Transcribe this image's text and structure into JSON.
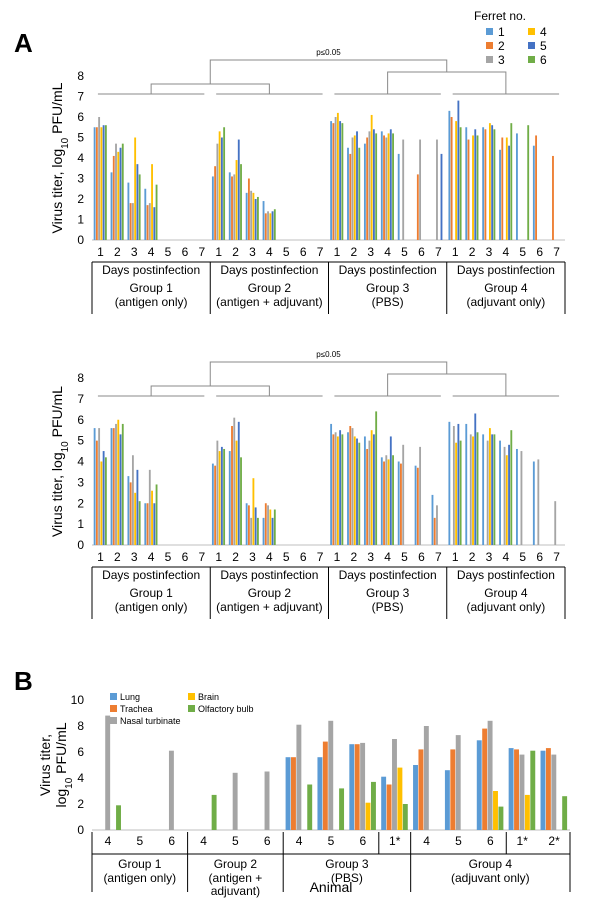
{
  "panel_a_label": "A",
  "panel_b_label": "B",
  "colors": {
    "1": "#5b9bd5",
    "2": "#ed7d31",
    "3": "#a5a5a5",
    "4": "#ffc000",
    "5": "#4472c4",
    "6": "#70ad47",
    "lung": "#5b9bd5",
    "trachea": "#ed7d31",
    "nasal": "#a5a5a5",
    "brain": "#ffc000",
    "olfactory": "#70ad47"
  },
  "chart_data": [
    {
      "type": "bar",
      "ylabel": "Virus titer, log10 PFU/mL",
      "ylim": [
        0,
        8
      ],
      "yticks": [
        0,
        1,
        2,
        3,
        4,
        5,
        6,
        7,
        8
      ],
      "legend_title": "Ferret no.",
      "legend_placement": "top-right",
      "significance": "p≤0.05",
      "days": [
        "1",
        "2",
        "3",
        "4",
        "5",
        "6",
        "7"
      ],
      "days_label": "Days postinfection",
      "groups": [
        {
          "name": "Group 1",
          "sub": "(antigen only)"
        },
        {
          "name": "Group 2",
          "sub": "(antigen + adjuvant)"
        },
        {
          "name": "Group 3",
          "sub": "(PBS)"
        },
        {
          "name": "Group 4",
          "sub": "(adjuvant only)"
        }
      ],
      "series": [
        {
          "name": "1",
          "values": [
            [
              5.5,
              3.3,
              2.8,
              2.5,
              0,
              0,
              0
            ],
            [
              3.1,
              3.3,
              2.3,
              1.9,
              0,
              0,
              0
            ],
            [
              5.8,
              4.5,
              4.7,
              5.3,
              4.2,
              0,
              0
            ],
            [
              6.3,
              5.5,
              5.5,
              4.4,
              5.2,
              4.6,
              0
            ]
          ]
        },
        {
          "name": "2",
          "values": [
            [
              5.5,
              4.1,
              1.8,
              1.7,
              0,
              0,
              0
            ],
            [
              3.6,
              3.1,
              3.0,
              1.3,
              0,
              0,
              0
            ],
            [
              5.7,
              4.2,
              5.0,
              5.1,
              0,
              3.2,
              0
            ],
            [
              6.0,
              4.9,
              5.4,
              5.0,
              0,
              5.1,
              4.1
            ]
          ]
        },
        {
          "name": "3",
          "values": [
            [
              6.0,
              4.7,
              1.8,
              1.8,
              0,
              0,
              0
            ],
            [
              4.7,
              3.2,
              2.4,
              1.4,
              0,
              0,
              0
            ],
            [
              6.0,
              5.0,
              5.3,
              5.0,
              4.9,
              4.9,
              4.9
            ]
          ]
        },
        {
          "name": "4",
          "values": [
            [
              5.5,
              4.3,
              5.0,
              3.7,
              0,
              0,
              0
            ],
            [
              5.3,
              3.9,
              2.3,
              1.3,
              0,
              0,
              0
            ],
            [
              6.2,
              5.1,
              6.1,
              5.2,
              0,
              0,
              0
            ],
            [
              5.8,
              5.1,
              5.7,
              5.0,
              0,
              0,
              0
            ]
          ]
        },
        {
          "name": "5",
          "values": [
            [
              5.6,
              4.5,
              3.7,
              1.6,
              0,
              0,
              0
            ],
            [
              5.0,
              4.9,
              2.0,
              1.4,
              0,
              0,
              0
            ],
            [
              5.8,
              5.3,
              5.4,
              5.4,
              0,
              0,
              4.2
            ],
            [
              6.8,
              5.4,
              5.6,
              4.6,
              0,
              0,
              0
            ]
          ]
        },
        {
          "name": "6",
          "values": [
            [
              5.6,
              4.7,
              3.2,
              2.7,
              0,
              0,
              0
            ],
            [
              5.5,
              3.7,
              2.1,
              1.5,
              0,
              0,
              0
            ],
            [
              5.7,
              4.5,
              5.2,
              5.2,
              0,
              0,
              0
            ],
            [
              5.5,
              5.1,
              5.4,
              5.7,
              5.6,
              0,
              0
            ]
          ]
        }
      ]
    },
    {
      "type": "bar",
      "ylabel": "Virus titer, log10 PFU/mL",
      "ylim": [
        0,
        8
      ],
      "yticks": [
        0,
        1,
        2,
        3,
        4,
        5,
        6,
        7,
        8
      ],
      "significance": "p≤0.05",
      "days": [
        "1",
        "2",
        "3",
        "4",
        "5",
        "6",
        "7"
      ],
      "days_label": "Days postinfection",
      "groups": [
        {
          "name": "Group 1",
          "sub": "(antigen only)"
        },
        {
          "name": "Group 2",
          "sub": "(antigen + adjuvant)"
        },
        {
          "name": "Group 3",
          "sub": "(PBS)"
        },
        {
          "name": "Group 4",
          "sub": "(adjuvant only)"
        }
      ],
      "series": [
        {
          "name": "1",
          "values": [
            [
              5.6,
              5.6,
              3.3,
              2.0,
              0,
              0,
              0
            ],
            [
              3.9,
              4.5,
              2.0,
              1.3,
              0,
              0,
              0
            ],
            [
              5.8,
              5.4,
              5.2,
              4.2,
              4.0,
              3.8,
              2.4
            ],
            [
              5.9,
              5.8,
              5.3,
              5.0,
              4.6,
              4.0,
              0
            ]
          ]
        },
        {
          "name": "2",
          "values": [
            [
              5.0,
              5.6,
              3.0,
              2.0,
              0,
              0,
              0
            ],
            [
              3.8,
              5.7,
              1.9,
              2.0,
              0,
              0,
              0
            ],
            [
              5.3,
              5.7,
              4.6,
              4.0,
              3.9,
              3.7,
              1.3
            ]
          ]
        },
        {
          "name": "3",
          "values": [
            [
              5.6,
              5.8,
              4.3,
              3.6,
              0,
              0,
              0
            ],
            [
              5.0,
              6.1,
              1.3,
              1.9,
              0,
              0,
              0
            ],
            [
              5.4,
              5.6,
              5.0,
              4.3,
              4.8,
              4.7,
              1.9
            ],
            [
              5.7,
              5.3,
              5.0,
              4.7,
              4.5,
              4.1,
              2.1
            ]
          ]
        },
        {
          "name": "4",
          "values": [
            [
              4.0,
              6.0,
              2.5,
              2.6,
              0,
              0,
              0
            ],
            [
              4.5,
              5.0,
              3.2,
              1.7,
              0,
              0,
              0
            ],
            [
              5.2,
              5.2,
              5.5,
              4.1,
              0,
              0,
              0
            ],
            [
              4.9,
              5.2,
              5.6,
              4.3,
              0,
              0,
              0
            ]
          ]
        },
        {
          "name": "5",
          "values": [
            [
              4.5,
              5.3,
              3.6,
              2.0,
              0,
              0,
              0
            ],
            [
              4.7,
              5.9,
              1.8,
              1.3,
              0,
              0,
              0
            ],
            [
              5.5,
              5.1,
              5.3,
              5.2,
              0,
              0,
              0
            ],
            [
              5.8,
              6.3,
              5.3,
              4.8,
              0,
              0,
              0
            ]
          ]
        },
        {
          "name": "6",
          "values": [
            [
              4.2,
              5.8,
              2.1,
              2.9,
              0,
              0,
              0
            ],
            [
              4.6,
              4.2,
              1.3,
              1.7,
              0,
              0,
              0
            ],
            [
              5.3,
              4.9,
              6.4,
              4.3,
              0,
              0,
              0
            ],
            [
              5.0,
              5.4,
              5.3,
              5.5,
              0,
              0,
              0
            ]
          ]
        }
      ]
    },
    {
      "type": "bar",
      "ylabel": "Virus titer, log10 PFU/mL",
      "xlabel": "Animal",
      "ylim": [
        0,
        10
      ],
      "yticks": [
        0,
        2,
        4,
        6,
        8,
        10
      ],
      "legend_placement": "top-left",
      "series_names": [
        "Lung",
        "Trachea",
        "Nasal turbinate",
        "Brain",
        "Olfactory bulb"
      ],
      "animals": [
        {
          "label": "4",
          "group": 0,
          "values": [
            0,
            0,
            8.8,
            0,
            1.9
          ]
        },
        {
          "label": "5",
          "group": 0,
          "values": [
            0,
            0,
            0,
            0,
            0
          ]
        },
        {
          "label": "6",
          "group": 0,
          "values": [
            0,
            0,
            6.1,
            0,
            0
          ]
        },
        {
          "label": "4",
          "group": 1,
          "values": [
            0,
            0,
            0,
            0,
            2.7
          ]
        },
        {
          "label": "5",
          "group": 1,
          "values": [
            0,
            0,
            4.4,
            0,
            0
          ]
        },
        {
          "label": "6",
          "group": 1,
          "values": [
            0,
            0,
            4.5,
            0,
            0
          ]
        },
        {
          "label": "4",
          "group": 2,
          "values": [
            5.6,
            5.6,
            8.1,
            0,
            3.5
          ]
        },
        {
          "label": "5",
          "group": 2,
          "values": [
            5.6,
            6.8,
            8.4,
            0,
            3.2
          ]
        },
        {
          "label": "6",
          "group": 2,
          "values": [
            6.6,
            6.6,
            6.7,
            2.1,
            3.7
          ]
        },
        {
          "label": "1*",
          "group": 2,
          "values": [
            4.1,
            3.5,
            7.0,
            4.8,
            2.0
          ]
        },
        {
          "label": "4",
          "group": 3,
          "values": [
            5.0,
            6.2,
            8.0,
            0,
            0
          ]
        },
        {
          "label": "5",
          "group": 3,
          "values": [
            4.6,
            6.2,
            7.3,
            0,
            0
          ]
        },
        {
          "label": "6",
          "group": 3,
          "values": [
            6.9,
            7.8,
            8.4,
            3.0,
            1.8
          ]
        },
        {
          "label": "1*",
          "group": 3,
          "values": [
            6.3,
            6.2,
            5.8,
            2.7,
            6.1
          ]
        },
        {
          "label": "2*",
          "group": 3,
          "values": [
            6.1,
            6.3,
            5.8,
            0,
            2.6
          ]
        }
      ],
      "groups": [
        {
          "name": "Group 1",
          "sub": "(antigen only)"
        },
        {
          "name": "Group 2",
          "sub": "(antigen + adjuvant)"
        },
        {
          "name": "Group 3",
          "sub": "(PBS)"
        },
        {
          "name": "Group 4",
          "sub": "(adjuvant only)"
        }
      ]
    }
  ]
}
